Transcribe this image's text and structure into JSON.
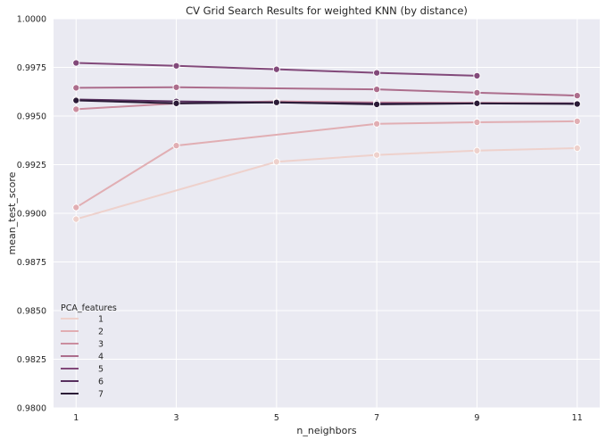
{
  "chart_data": {
    "type": "line",
    "title": "CV Grid Search Results for weighted KNN (by distance)",
    "xlabel": "n_neighbors",
    "ylabel": "mean_test_score",
    "x_ticks": [
      1,
      3,
      5,
      7,
      9,
      11
    ],
    "x_tick_labels": [
      "1",
      "3",
      "5",
      "7",
      "9",
      "11"
    ],
    "xlim": [
      0.55,
      11.45
    ],
    "ylim": [
      0.98,
      1.0
    ],
    "y_ticks": [
      0.98,
      0.9825,
      0.985,
      0.9875,
      0.99,
      0.9925,
      0.995,
      0.9975,
      1.0
    ],
    "y_tick_labels": [
      "0.9800",
      "0.9825",
      "0.9850",
      "0.9875",
      "0.9900",
      "0.9925",
      "0.9950",
      "0.9975",
      "1.0000"
    ],
    "grid": true,
    "legend_title": "PCA_features",
    "legend_position": "lower-left",
    "series": [
      {
        "name": "1",
        "color": "#eed1cc",
        "x": [
          1,
          5,
          7,
          9,
          11
        ],
        "values": [
          0.9897,
          0.99265,
          0.993,
          0.99322,
          0.99335
        ]
      },
      {
        "name": "2",
        "color": "#e1aeb3",
        "x": [
          1,
          3,
          7,
          9,
          11
        ],
        "values": [
          0.9903,
          0.99348,
          0.9946,
          0.99468,
          0.99473
        ]
      },
      {
        "name": "3",
        "color": "#cb8d9f",
        "x": [
          1,
          3,
          5,
          7,
          9,
          11
        ],
        "values": [
          0.99535,
          0.99565,
          0.99575,
          0.9957,
          0.99568,
          0.99565
        ]
      },
      {
        "name": "4",
        "color": "#ac6d8c",
        "x": [
          1,
          3,
          7,
          9,
          11
        ],
        "values": [
          0.99645,
          0.99648,
          0.99637,
          0.9962,
          0.99605
        ]
      },
      {
        "name": "5",
        "color": "#82497a",
        "x": [
          1,
          3,
          5,
          7,
          9
        ],
        "values": [
          0.99773,
          0.99758,
          0.9974,
          0.99722,
          0.99707
        ]
      },
      {
        "name": "6",
        "color": "#572f5e",
        "x": [
          1,
          3,
          5,
          7,
          9,
          11
        ],
        "values": [
          0.99585,
          0.99575,
          0.9957,
          0.99565,
          0.99565,
          0.99565
        ]
      },
      {
        "name": "7",
        "color": "#2b1b37",
        "x": [
          1,
          3,
          5,
          7,
          9,
          11
        ],
        "values": [
          0.9958,
          0.99565,
          0.9957,
          0.9956,
          0.99565,
          0.99562
        ]
      }
    ]
  }
}
